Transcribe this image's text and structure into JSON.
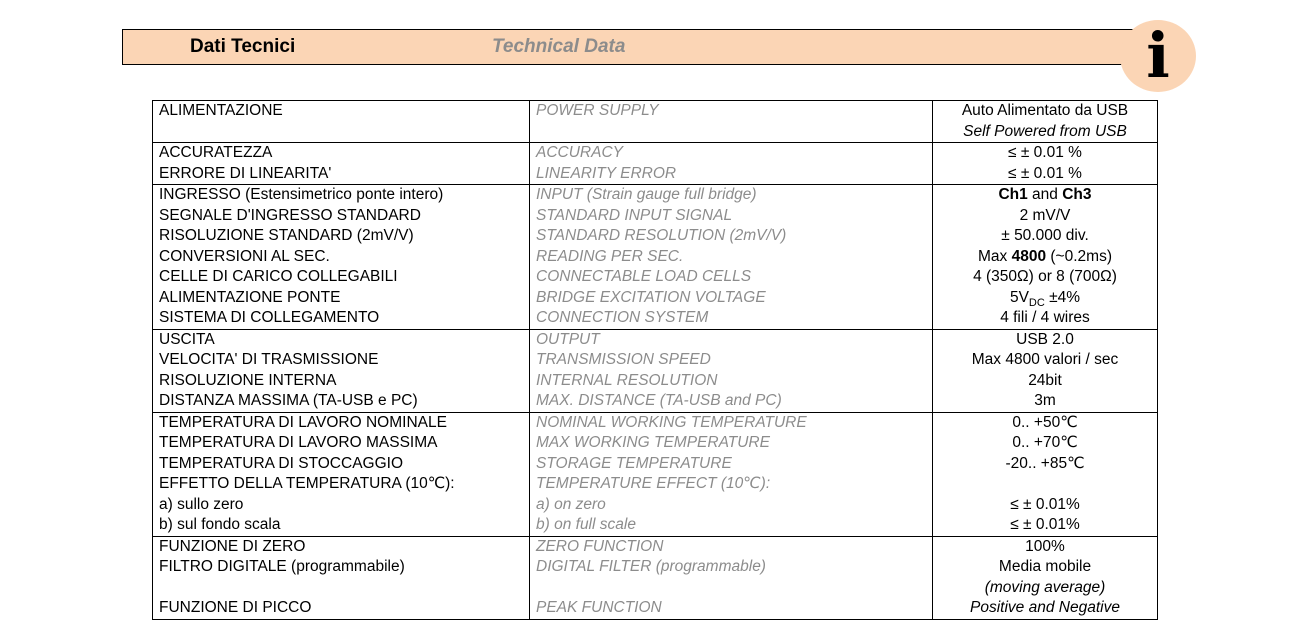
{
  "header": {
    "title_it": "Dati Tecnici",
    "title_en": "Technical Data",
    "icon": "info-icon",
    "icon_glyph": "i"
  },
  "sections": [
    {
      "rows": [
        {
          "it": "ALIMENTAZIONE",
          "en": "POWER SUPPLY",
          "val": "Auto Alimentato da USB"
        },
        {
          "it": "",
          "en": "",
          "val": "Self Powered from USB",
          "val_italic": true
        }
      ]
    },
    {
      "rows": [
        {
          "it": "ACCURATEZZA",
          "en": "ACCURACY",
          "val": "≤ ± 0.01 %"
        },
        {
          "it": "ERRORE DI LINEARITA'",
          "en": "LINEARITY ERROR",
          "val": "≤ ± 0.01 %"
        }
      ]
    },
    {
      "rows": [
        {
          "it": "INGRESSO (Estensimetrico ponte intero)",
          "en": "INPUT (Strain gauge full bridge)",
          "val_parts": [
            {
              "t": "Ch1",
              "b": true
            },
            {
              "t": " and "
            },
            {
              "t": "Ch3",
              "b": true
            }
          ]
        },
        {
          "it": "SEGNALE D'INGRESSO STANDARD",
          "en": "STANDARD INPUT SIGNAL",
          "val": "2 mV/V"
        },
        {
          "it": "RISOLUZIONE STANDARD (2mV/V)",
          "en": "STANDARD RESOLUTION (2mV/V)",
          "val": "± 50.000 div."
        },
        {
          "it": "CONVERSIONI AL SEC.",
          "en": "READING PER SEC.",
          "val_parts": [
            {
              "t": "Max "
            },
            {
              "t": "4800",
              "b": true
            },
            {
              "t": " (~0.2ms)"
            }
          ]
        },
        {
          "it": "CELLE DI CARICO COLLEGABILI",
          "en": "CONNECTABLE LOAD CELLS",
          "val": "4 (350Ω) or 8 (700Ω)"
        },
        {
          "it": "ALIMENTAZIONE PONTE",
          "en": "BRIDGE EXCITATION VOLTAGE",
          "val_parts": [
            {
              "t": "5V"
            },
            {
              "t": "DC",
              "sub": true
            },
            {
              "t": " ±4%"
            }
          ]
        },
        {
          "it": "SISTEMA DI COLLEGAMENTO",
          "en": "CONNECTION SYSTEM",
          "val": "4 fili / 4 wires"
        }
      ]
    },
    {
      "rows": [
        {
          "it": "USCITA",
          "en": "OUTPUT",
          "val": "USB 2.0"
        },
        {
          "it": "VELOCITA' DI TRASMISSIONE",
          "en": "TRANSMISSION SPEED",
          "val": "Max 4800 valori / sec"
        },
        {
          "it": "RISOLUZIONE INTERNA",
          "en": "INTERNAL RESOLUTION",
          "val": "24bit"
        },
        {
          "it": "DISTANZA MASSIMA (TA-USB e PC)",
          "en": "MAX. DISTANCE (TA-USB and PC)",
          "val": "3m"
        }
      ]
    },
    {
      "rows": [
        {
          "it": "TEMPERATURA DI LAVORO NOMINALE",
          "en": "NOMINAL WORKING TEMPERATURE",
          "val": "0.. +50℃"
        },
        {
          "it": "TEMPERATURA DI LAVORO MASSIMA",
          "en": "MAX WORKING TEMPERATURE",
          "val": "0.. +70℃"
        },
        {
          "it": "TEMPERATURA DI STOCCAGGIO",
          "en": "STORAGE TEMPERATURE",
          "val": "-20.. +85℃"
        },
        {
          "it": "EFFETTO DELLA TEMPERATURA (10℃):",
          "en": "TEMPERATURE EFFECT (10℃):",
          "val": ""
        },
        {
          "it": "a) sullo zero",
          "en": "a) on zero",
          "val": "≤ ± 0.01%"
        },
        {
          "it": "b) sul fondo scala",
          "en": "b) on full scale",
          "val": "≤ ± 0.01%"
        }
      ]
    },
    {
      "rows": [
        {
          "it": "FUNZIONE DI ZERO",
          "en": "ZERO FUNCTION",
          "val": "100%"
        },
        {
          "it": "FILTRO DIGITALE (programmabile)",
          "en": "DIGITAL FILTER (programmable)",
          "val": "Media mobile"
        },
        {
          "it": "",
          "en": "",
          "val": "(moving average)",
          "val_italic": true
        },
        {
          "it": "FUNZIONE DI PICCO",
          "en": "PEAK FUNCTION",
          "val": "Positive and Negative",
          "val_italic": true
        }
      ]
    }
  ]
}
